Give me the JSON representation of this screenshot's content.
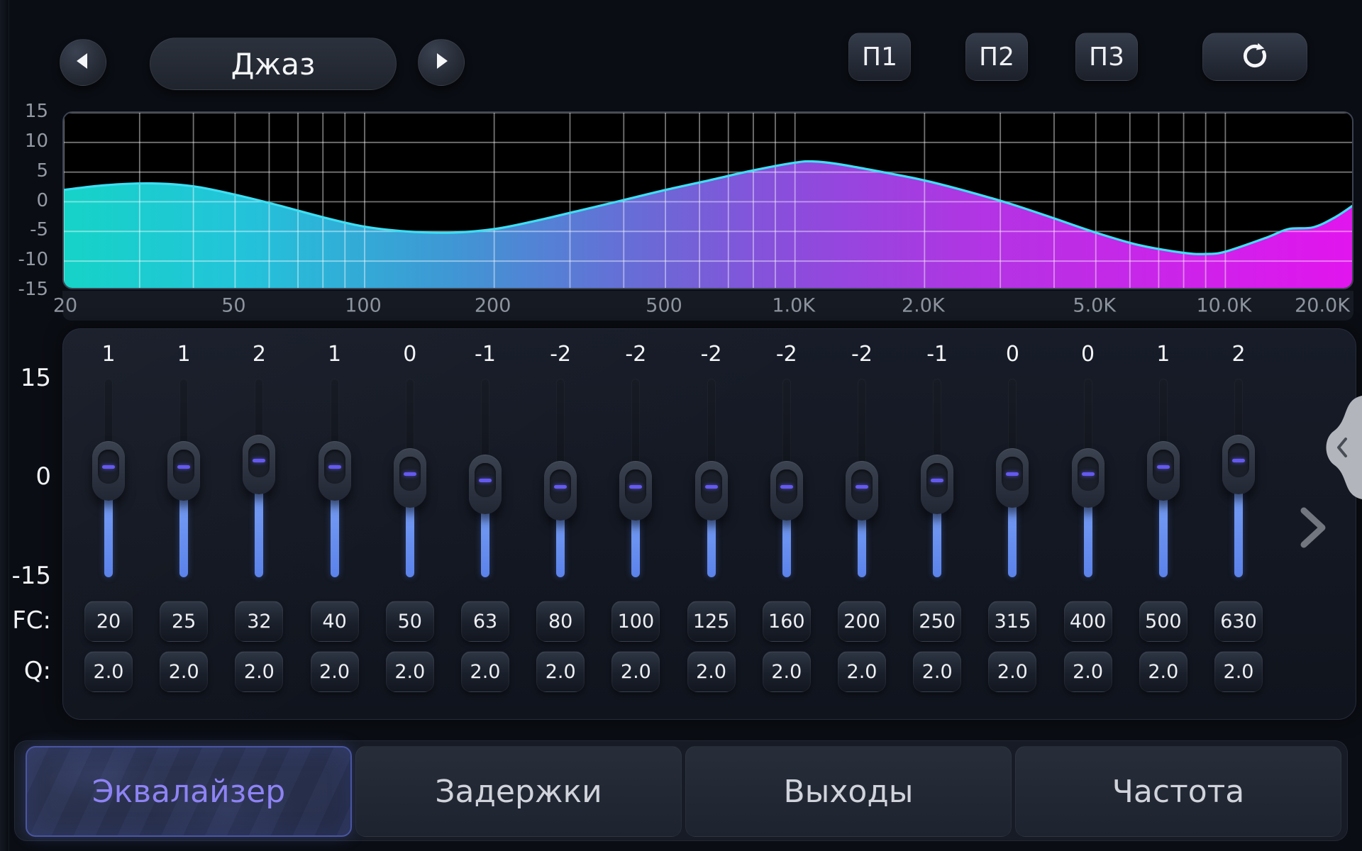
{
  "topbar": {
    "preset_label": "Джаз",
    "prev_icon": "triangle-left",
    "next_icon": "triangle-right",
    "memory": [
      "П1",
      "П2",
      "П3"
    ],
    "reset_icon": "refresh-clockwise"
  },
  "chart_data": {
    "type": "area",
    "x_scale": "log",
    "xlim": [
      20,
      20000
    ],
    "ylim": [
      -15,
      15
    ],
    "grid": true,
    "x": [
      20,
      25,
      32,
      40,
      50,
      63,
      80,
      100,
      125,
      160,
      200,
      250,
      315,
      400,
      500,
      630,
      800,
      1000,
      1100,
      1250,
      1600,
      2000,
      2500,
      3150,
      4000,
      5000,
      6300,
      8000,
      9000,
      10000,
      12500,
      14000,
      16000,
      18000,
      20000
    ],
    "y": [
      2.0,
      2.8,
      3.1,
      2.6,
      1.2,
      -0.6,
      -2.6,
      -4.2,
      -5.0,
      -5.2,
      -4.6,
      -3.2,
      -1.5,
      0.3,
      2.0,
      3.6,
      5.3,
      6.6,
      6.8,
      6.4,
      5.0,
      3.6,
      1.8,
      -0.3,
      -2.8,
      -5.2,
      -7.3,
      -8.6,
      -8.8,
      -8.4,
      -6.0,
      -4.6,
      -4.3,
      -2.6,
      -0.4
    ],
    "xtick_values": [
      20,
      50,
      100,
      200,
      500,
      1000,
      2000,
      5000,
      10000,
      20000
    ],
    "xtick_labels": [
      "20",
      "50",
      "100",
      "200",
      "500",
      "1.0K",
      "2.0K",
      "5.0K",
      "10.0K",
      "20.0K"
    ],
    "ytick_values": [
      15,
      10,
      5,
      0,
      -5,
      -10,
      -15
    ],
    "ytick_labels": [
      "15",
      "10",
      "5",
      "0",
      "-5",
      "-10",
      "-15"
    ],
    "line_color": "#3ddff2",
    "fill_gradient": [
      "#16d3c7",
      "#23c3da",
      "#3f97d4",
      "#6a6ad6",
      "#8d4bdc",
      "#b433e4",
      "#e215ee"
    ],
    "grid_color": "rgba(255,255,255,0.45)"
  },
  "equalizer": {
    "scale_labels": [
      "15",
      "0",
      "-15"
    ],
    "fc_label": "FC:",
    "q_label": "Q:",
    "accent_blue": "#5d85ee",
    "thumb_dash_color": "#6459ef",
    "bands": [
      {
        "gain": 1,
        "fc": "20",
        "q": "2.0"
      },
      {
        "gain": 1,
        "fc": "25",
        "q": "2.0"
      },
      {
        "gain": 2,
        "fc": "32",
        "q": "2.0"
      },
      {
        "gain": 1,
        "fc": "40",
        "q": "2.0"
      },
      {
        "gain": 0,
        "fc": "50",
        "q": "2.0"
      },
      {
        "gain": -1,
        "fc": "63",
        "q": "2.0"
      },
      {
        "gain": -2,
        "fc": "80",
        "q": "2.0"
      },
      {
        "gain": -2,
        "fc": "100",
        "q": "2.0"
      },
      {
        "gain": -2,
        "fc": "125",
        "q": "2.0"
      },
      {
        "gain": -2,
        "fc": "160",
        "q": "2.0"
      },
      {
        "gain": -2,
        "fc": "200",
        "q": "2.0"
      },
      {
        "gain": -1,
        "fc": "250",
        "q": "2.0"
      },
      {
        "gain": 0,
        "fc": "315",
        "q": "2.0"
      },
      {
        "gain": 0,
        "fc": "400",
        "q": "2.0"
      },
      {
        "gain": 1,
        "fc": "500",
        "q": "2.0"
      },
      {
        "gain": 2,
        "fc": "630",
        "q": "2.0"
      }
    ]
  },
  "pager": {
    "next_icon": "chevron-right",
    "drawer_icon": "chevron-left"
  },
  "tabs": [
    {
      "label": "Эквалайзер",
      "selected": true
    },
    {
      "label": "Задержки",
      "selected": false
    },
    {
      "label": "Выходы",
      "selected": false
    },
    {
      "label": "Частота",
      "selected": false
    }
  ]
}
